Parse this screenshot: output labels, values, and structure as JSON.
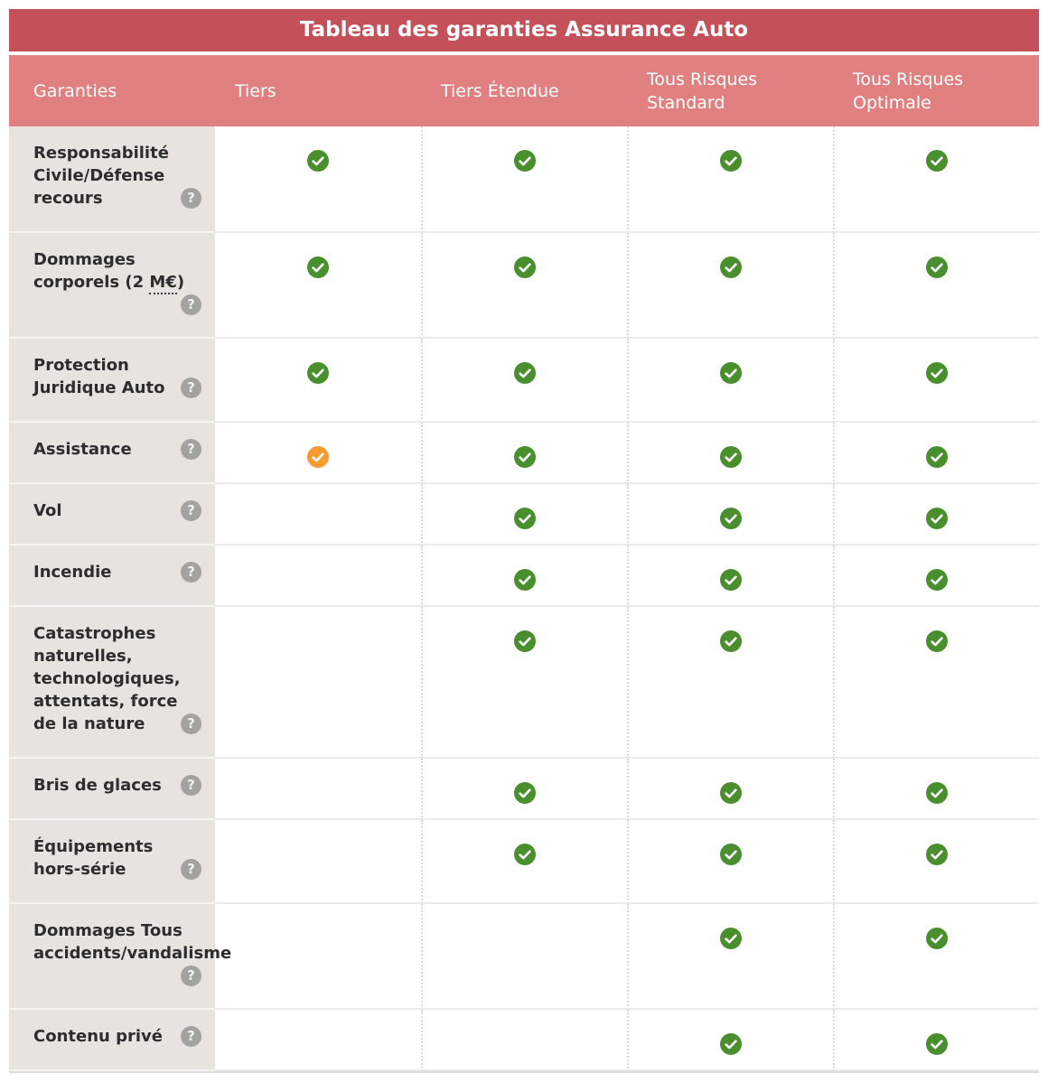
{
  "title": "Tableau des garanties Assurance Auto",
  "header": {
    "columns": [
      "Garanties",
      "Tiers",
      "Tiers Étendue",
      "Tous Risques Standard",
      "Tous Risques Optimale"
    ]
  },
  "icons": {
    "help_glyph": "?",
    "included": "green-check-circle",
    "partial": "orange-check-circle"
  },
  "colors": {
    "title_bar": "#c4515a",
    "header_bg": "#e08080",
    "header_text": "#ffffff",
    "label_col_bg": "#e7e4df",
    "label_text": "#2d2d2d",
    "check_green": "#4a8f2e",
    "check_orange": "#f79b31",
    "help_icon_bg": "#a2a29e"
  },
  "rows": [
    {
      "label": "Responsabilité Civile/Défense recours",
      "cells": [
        "yes",
        "yes",
        "yes",
        "yes"
      ]
    },
    {
      "label": "Dommages corporels (2 M€)",
      "label_parts": [
        {
          "text": "Dommages corporels (2 "
        },
        {
          "text": "M€",
          "underline": true
        },
        {
          "text": ")"
        }
      ],
      "cells": [
        "yes",
        "yes",
        "yes",
        "yes"
      ]
    },
    {
      "label": "Protection Juridique Auto",
      "cells": [
        "yes",
        "yes",
        "yes",
        "yes"
      ]
    },
    {
      "label": "Assistance",
      "cells": [
        "partial",
        "yes",
        "yes",
        "yes"
      ]
    },
    {
      "label": "Vol",
      "cells": [
        "no",
        "yes",
        "yes",
        "yes"
      ]
    },
    {
      "label": "Incendie",
      "cells": [
        "no",
        "yes",
        "yes",
        "yes"
      ]
    },
    {
      "label": "Catastrophes naturelles, technologiques, attentats, force de la nature",
      "cells": [
        "no",
        "yes",
        "yes",
        "yes"
      ]
    },
    {
      "label": "Bris de glaces",
      "cells": [
        "no",
        "yes",
        "yes",
        "yes"
      ]
    },
    {
      "label": "Équipements hors-série",
      "cells": [
        "no",
        "yes",
        "yes",
        "yes"
      ]
    },
    {
      "label": "Dommages Tous accidents/vandalisme",
      "cells": [
        "no",
        "no",
        "yes",
        "yes"
      ]
    },
    {
      "label": "Contenu privé",
      "cells": [
        "no",
        "no",
        "yes",
        "yes"
      ]
    }
  ]
}
